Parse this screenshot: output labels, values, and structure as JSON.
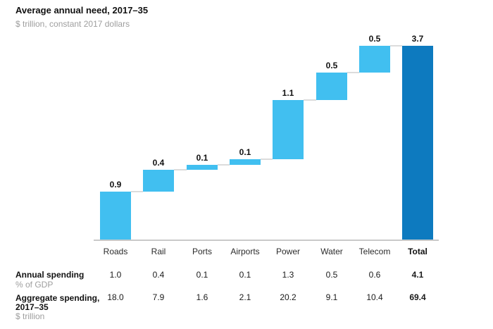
{
  "header": {
    "title": "Average annual need, 2017–35",
    "subtitle": "$ trillion, constant 2017 dollars"
  },
  "chart_data": {
    "type": "waterfall",
    "title": "Average annual need, 2017–35",
    "unit_note": "$ trillion, constant 2017 dollars",
    "categories": [
      "Roads",
      "Rail",
      "Ports",
      "Airports",
      "Power",
      "Water",
      "Telecom",
      "Total"
    ],
    "values": [
      0.9,
      0.4,
      0.1,
      0.1,
      1.1,
      0.5,
      0.5
    ],
    "value_labels": [
      "0.9",
      "0.4",
      "0.1",
      "0.1",
      "1.1",
      "0.5",
      "0.5",
      "3.7"
    ],
    "total_value": 3.7,
    "ylim": [
      0,
      3.7
    ],
    "grid": false,
    "legend": "none",
    "colors": {
      "segment": "#41BFF0",
      "total": "#0D7ABF",
      "connector": "#DCDCDC",
      "axis": "#C9C9C9"
    }
  },
  "table": {
    "columns": [
      "Roads",
      "Rail",
      "Ports",
      "Airports",
      "Power",
      "Water",
      "Telecom",
      "Total"
    ],
    "rows": [
      {
        "label": "Annual spending",
        "sublabel": "% of GDP",
        "values": [
          "1.0",
          "0.4",
          "0.1",
          "0.1",
          "1.3",
          "0.5",
          "0.6"
        ],
        "total": "4.1"
      },
      {
        "label": "Aggregate spending, 2017–35",
        "sublabel": "$ trillion",
        "values": [
          "18.0",
          "7.9",
          "1.6",
          "2.1",
          "20.2",
          "9.1",
          "10.4"
        ],
        "total": "69.4"
      }
    ]
  }
}
